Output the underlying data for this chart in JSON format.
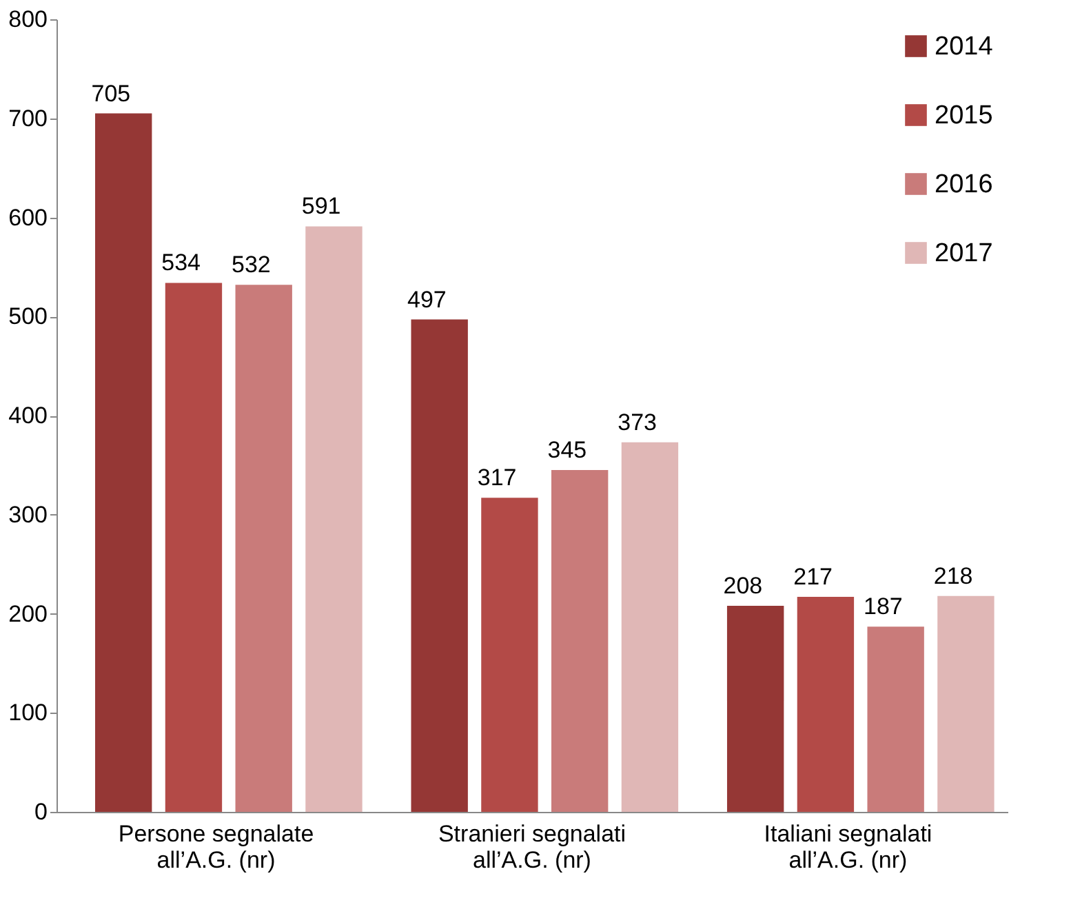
{
  "chart_data": {
    "type": "bar",
    "categories": [
      "Persone segnalate\nall’A.G. (nr)",
      "Stranieri segnalati\nall’A.G. (nr)",
      "Italiani segnalati\nall’A.G. (nr)"
    ],
    "series": [
      {
        "name": "2014",
        "color": "#953735",
        "values": [
          705,
          497,
          208
        ]
      },
      {
        "name": "2015",
        "color": "#b34a47",
        "values": [
          534,
          317,
          217
        ]
      },
      {
        "name": "2016",
        "color": "#c97b7a",
        "values": [
          532,
          345,
          187
        ]
      },
      {
        "name": "2017",
        "color": "#e0b7b6",
        "values": [
          591,
          373,
          218
        ]
      }
    ],
    "ylim": [
      0,
      800
    ],
    "yticks": [
      0,
      100,
      200,
      300,
      400,
      500,
      600,
      700,
      800
    ],
    "grid": false,
    "legend": "top right",
    "data_labels": true
  }
}
